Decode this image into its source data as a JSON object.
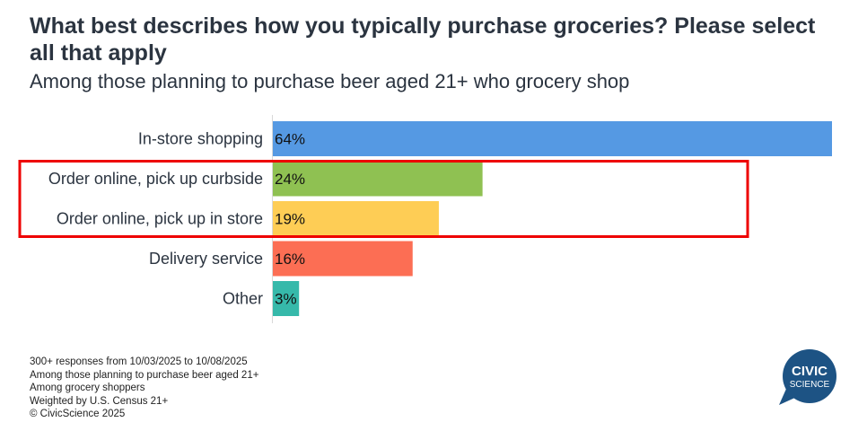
{
  "header": {
    "title": "What best describes how you typically purchase groceries? Please select all that apply",
    "subtitle": "Among those planning to purchase beer aged 21+ who grocery shop"
  },
  "chart_data": {
    "type": "bar",
    "orientation": "horizontal",
    "title": "What best describes how you typically purchase groceries? Please select all that apply",
    "subtitle": "Among those planning to purchase beer aged 21+ who grocery shop",
    "categories": [
      "In-store shopping",
      "Order online, pick up curbside",
      "Order online, pick up in store",
      "Delivery service",
      "Other"
    ],
    "values": [
      64,
      24,
      19,
      16,
      3
    ],
    "value_labels": [
      "64%",
      "24%",
      "19%",
      "16%",
      "3%"
    ],
    "colors": [
      "#5599e3",
      "#8fc152",
      "#fecd55",
      "#fc6e54",
      "#36b9aa"
    ],
    "xlim": [
      0,
      64
    ],
    "grid": false,
    "highlight": {
      "categories": [
        "Order online, pick up curbside",
        "Order online, pick up in store"
      ],
      "color": "#ee0000"
    },
    "xlabel": "",
    "ylabel": ""
  },
  "footer": {
    "notes": [
      "300+ responses from 10/03/2025 to 10/08/2025",
      "Among those planning to purchase beer aged 21+",
      "Among grocery shoppers",
      "Weighted by U.S. Census 21+",
      "© CivicScience 2025"
    ],
    "logo": {
      "line1": "CIVIC",
      "line2": "SCIENCE",
      "color": "#1d5384"
    }
  }
}
